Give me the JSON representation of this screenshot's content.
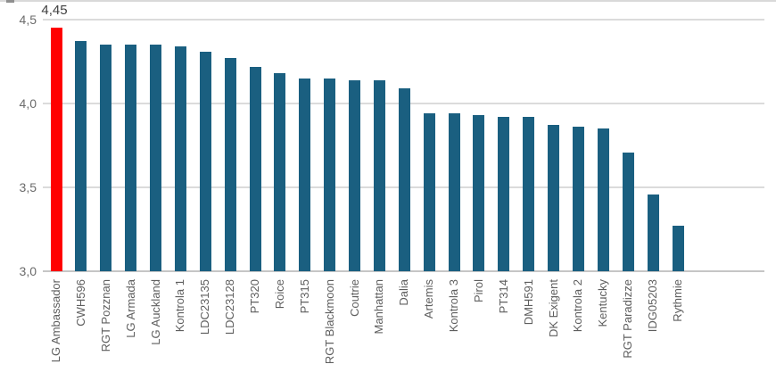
{
  "window": {
    "top_border_color": "#d9d9d9"
  },
  "chart_data": {
    "type": "bar",
    "title": "",
    "xlabel": "",
    "ylabel": "",
    "grid": true,
    "legend": false,
    "categories": [
      "LG Ambassador",
      "CWH596",
      "RGT Pozznan",
      "LG Armada",
      "LG Auckland",
      "Kontrola 1",
      "LDC23135",
      "LDC23128",
      "PT320",
      "Roice",
      "PT315",
      "RGT Blackmoon",
      "Coutrie",
      "Manhattan",
      "Dalia",
      "Artemis",
      "Kontrola 3",
      "Pirol",
      "PT314",
      "DMH591",
      "DK Exigent",
      "Kontrola 2",
      "Kentucky",
      "RGT Paradizze",
      "IDG05203",
      "Rythmie"
    ],
    "values": [
      4.45,
      4.37,
      4.35,
      4.35,
      4.35,
      4.34,
      4.31,
      4.27,
      4.22,
      4.18,
      4.15,
      4.15,
      4.14,
      4.14,
      4.09,
      3.94,
      3.94,
      3.93,
      3.92,
      3.92,
      3.87,
      3.86,
      3.85,
      3.71,
      3.46,
      3.27
    ],
    "highlight_index": 0,
    "highlight_color": "#ff0000",
    "bar_color": "#1a5f80",
    "data_labels": [
      {
        "index": 0,
        "text": "4,45"
      }
    ],
    "y_axis": {
      "min": 3.0,
      "max": 4.5,
      "ticks": [
        {
          "label": "4,5",
          "value": 4.5
        },
        {
          "label": "4,0",
          "value": 4.0
        },
        {
          "label": "3,5",
          "value": 3.5
        },
        {
          "label": "3,0",
          "value": 3.0
        }
      ]
    },
    "colors": {
      "gridline": "#dbdbdb",
      "axis_line": "#c6c6c6",
      "tick_label": "#6b6b6b",
      "category_label": "#5e5e5e",
      "value_label": "#3f3f3f"
    }
  }
}
